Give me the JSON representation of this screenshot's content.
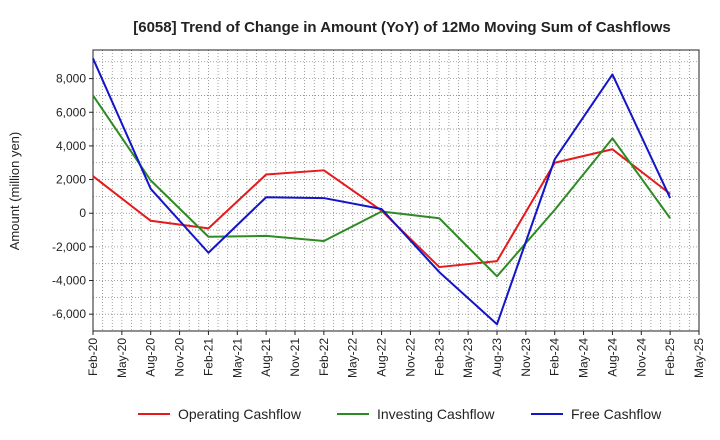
{
  "chart_data": {
    "type": "line",
    "title": "[6058]  Trend of Change in Amount (YoY) of 12Mo Moving Sum of Cashflows",
    "xlabel": "",
    "ylabel": "Amount (million yen)",
    "ylim": [
      -7000,
      9700
    ],
    "yticks": [
      8000,
      6000,
      4000,
      2000,
      0,
      -2000,
      -4000,
      -6000
    ],
    "ytick_labels": [
      "8,000",
      "6,000",
      "4,000",
      "2,000",
      "0",
      "-2,000",
      "-4,000",
      "-6,000"
    ],
    "categories": [
      "Feb-20",
      "May-20",
      "Aug-20",
      "Nov-20",
      "Feb-21",
      "May-21",
      "Aug-21",
      "Nov-21",
      "Feb-22",
      "May-22",
      "Aug-22",
      "Nov-22",
      "Feb-23",
      "May-23",
      "Aug-23",
      "Nov-23",
      "Feb-24",
      "May-24",
      "Aug-24",
      "Nov-24",
      "Feb-25",
      "May-25"
    ],
    "x": [
      "Feb-20",
      "Aug-20",
      "Feb-21",
      "Aug-21",
      "Feb-22",
      "Aug-22",
      "Feb-23",
      "Aug-23",
      "Feb-24",
      "Aug-24",
      "Feb-25"
    ],
    "series": [
      {
        "name": "Operating Cashflow",
        "color": "#e41a1c",
        "values": [
          2200,
          -450,
          -900,
          2300,
          2550,
          150,
          -3200,
          -2850,
          3000,
          3800,
          1150
        ]
      },
      {
        "name": "Investing Cashflow",
        "color": "#2e8b24",
        "values": [
          7000,
          1950,
          -1400,
          -1350,
          -1650,
          100,
          -300,
          -3750,
          200,
          4450,
          -300
        ]
      },
      {
        "name": "Free Cashflow",
        "color": "#1414c8",
        "values": [
          9200,
          1450,
          -2350,
          950,
          900,
          250,
          -3500,
          -6600,
          3200,
          8250,
          900
        ]
      }
    ],
    "grid": true,
    "legend": "bottom"
  }
}
